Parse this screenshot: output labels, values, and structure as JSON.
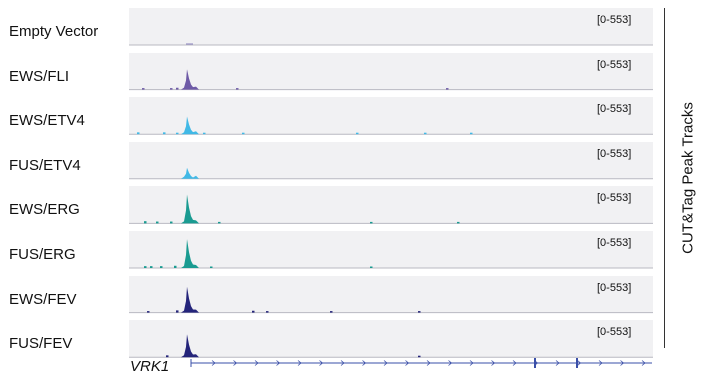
{
  "tracks": [
    {
      "label": "Empty Vector",
      "range": "[0-553]",
      "color": "#9a92c4"
    },
    {
      "label": "EWS/FLI",
      "range": "[0-553]",
      "color": "#6e5aa6"
    },
    {
      "label": "EWS/ETV4",
      "range": "[0-553]",
      "color": "#41b9e6"
    },
    {
      "label": "FUS/ETV4",
      "range": "[0-553]",
      "color": "#41b9e6"
    },
    {
      "label": "EWS/ERG",
      "range": "[0-553]",
      "color": "#1a9b91"
    },
    {
      "label": "FUS/ERG",
      "range": "[0-553]",
      "color": "#1a9b91"
    },
    {
      "label": "EWS/FEV",
      "range": "[0-553]",
      "color": "#24247a"
    },
    {
      "label": "FUS/FEV",
      "range": "[0-553]",
      "color": "#24247a"
    }
  ],
  "side_label": "CUT&Tag Peak Tracks",
  "gene": {
    "name": "VRK1",
    "color": "#3a4fa8"
  }
}
